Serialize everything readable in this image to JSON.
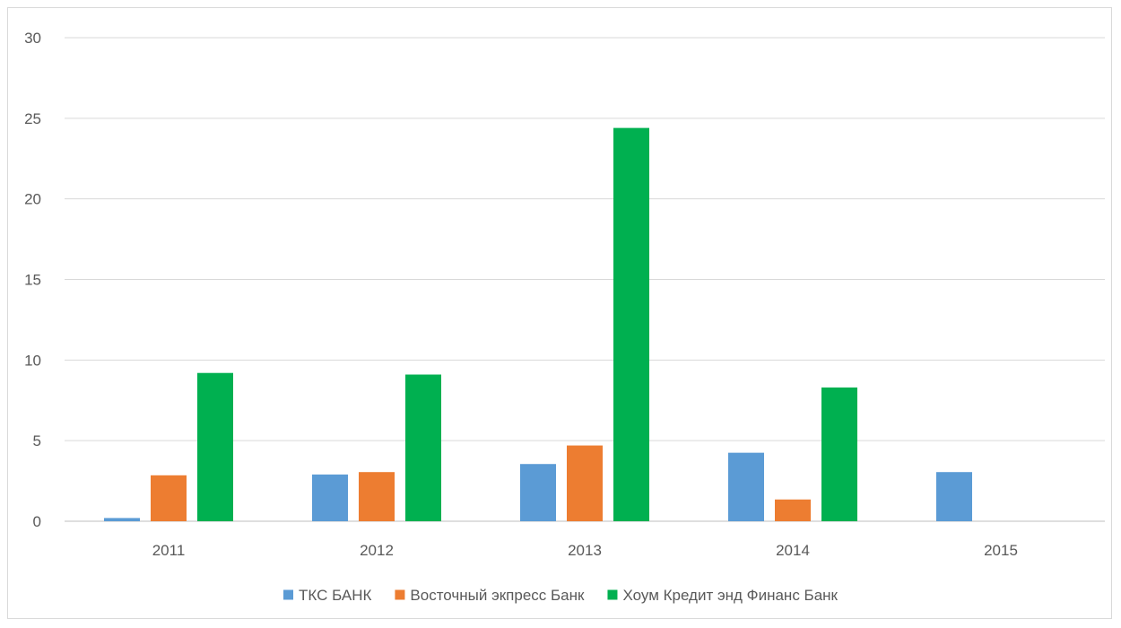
{
  "chart_data": {
    "type": "bar",
    "title": "",
    "xlabel": "",
    "ylabel": "",
    "categories": [
      "2011",
      "2012",
      "2013",
      "2014",
      "2015"
    ],
    "series": [
      {
        "name": "ТКС БАНК",
        "color": "#5B9BD5",
        "values": [
          0.2,
          2.9,
          3.55,
          4.25,
          3.05
        ]
      },
      {
        "name": "Восточный экпресс Банк",
        "color": "#ED7D31",
        "values": [
          2.85,
          3.05,
          4.7,
          1.35,
          null
        ]
      },
      {
        "name": "Хоум Кредит энд Финанс Банк",
        "color": "#00B050",
        "values": [
          9.2,
          9.1,
          24.4,
          8.3,
          null
        ]
      }
    ],
    "ylim": [
      0,
      30
    ],
    "yticks": [
      0,
      5,
      10,
      15,
      20,
      25,
      30
    ],
    "grid": true,
    "legend_position": "bottom"
  }
}
